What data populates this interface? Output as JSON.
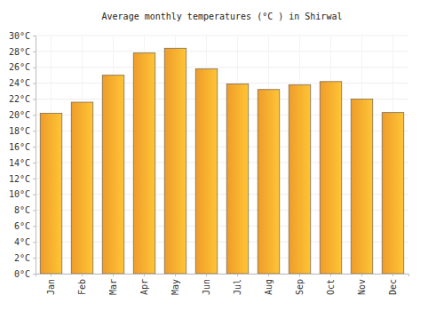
{
  "chart_data": {
    "type": "bar",
    "title": "Average monthly temperatures (°C ) in Shirwal",
    "categories": [
      "Jan",
      "Feb",
      "Mar",
      "Apr",
      "May",
      "Jun",
      "Jul",
      "Aug",
      "Sep",
      "Oct",
      "Nov",
      "Dec"
    ],
    "values": [
      20.2,
      21.6,
      25.0,
      27.8,
      28.4,
      25.8,
      23.9,
      23.2,
      23.8,
      24.2,
      22.0,
      20.3
    ],
    "color": "#fba52c",
    "ylim": [
      0,
      30
    ],
    "yticks": [
      {
        "value": 0,
        "label": "0°C"
      },
      {
        "value": 2,
        "label": "2°C"
      },
      {
        "value": 4,
        "label": "4°C"
      },
      {
        "value": 6,
        "label": "6°C"
      },
      {
        "value": 8,
        "label": "8°C"
      },
      {
        "value": 10,
        "label": "10°C"
      },
      {
        "value": 12,
        "label": "12°C"
      },
      {
        "value": 14,
        "label": "14°C"
      },
      {
        "value": 16,
        "label": "16°C"
      },
      {
        "value": 18,
        "label": "18°C"
      },
      {
        "value": 20,
        "label": "20°C"
      },
      {
        "value": 22,
        "label": "22°C"
      },
      {
        "value": 24,
        "label": "24°C"
      },
      {
        "value": 26,
        "label": "26°C"
      },
      {
        "value": 28,
        "label": "28°C"
      },
      {
        "value": 30,
        "label": "30°C"
      }
    ],
    "grid": true
  }
}
